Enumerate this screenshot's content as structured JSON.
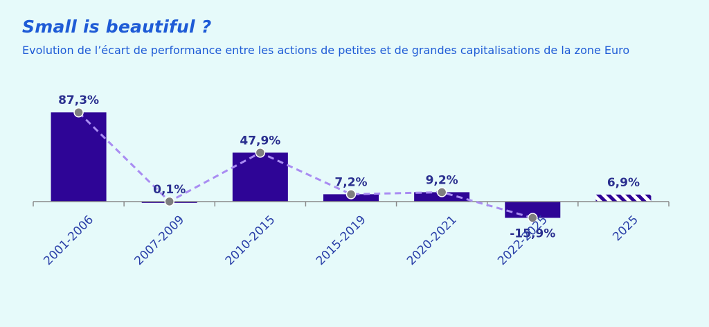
{
  "title": "Small is beautiful ?",
  "subtitle": "Evolution de l’écart de performance entre les actions de petites et de grandes capitalisations de la zone Euro",
  "colors": {
    "background": "#e6fafa",
    "bar": "#2e0596",
    "line": "#a98cf2",
    "marker": "#7f7f7f",
    "title": "#1e5bd6",
    "labels": "#2a2f8f"
  },
  "chart_data": {
    "type": "bar",
    "title": "Small is beautiful ?",
    "subtitle": "Evolution de l’écart de performance entre les actions de petites et de grandes capitalisations de la zone Euro",
    "xlabel": "",
    "ylabel": "",
    "categories": [
      "2001-2006",
      "2007-2009",
      "2010-2015",
      "2015-2019",
      "2020-2021",
      "2022-2025",
      "2025"
    ],
    "values": [
      87.3,
      0.1,
      47.9,
      7.2,
      9.2,
      -15.9,
      6.9
    ],
    "value_labels": [
      "87,3%",
      "0,1%",
      "47,9%",
      "7,2%",
      "9,2%",
      "-15,9%",
      "6,9%"
    ],
    "bar_style": [
      "solid",
      "solid",
      "solid",
      "solid",
      "solid",
      "solid",
      "hatched"
    ],
    "overlay_line": {
      "style": "dashed",
      "with_markers": true,
      "categories": [
        "2001-2006",
        "2007-2009",
        "2010-2015",
        "2015-2019",
        "2020-2021",
        "2022-2025"
      ],
      "values": [
        87.3,
        0.1,
        47.9,
        7.2,
        9.2,
        -15.9
      ]
    },
    "ylim": [
      -25,
      100
    ],
    "grid": false,
    "legend": "none"
  }
}
